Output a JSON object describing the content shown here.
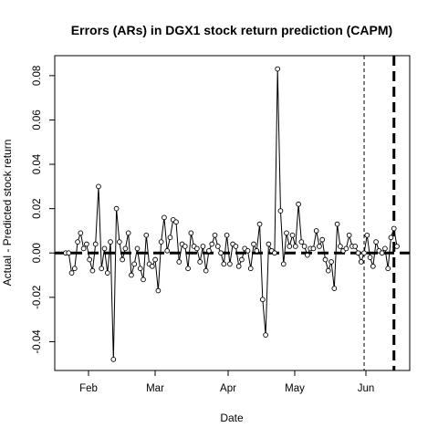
{
  "chart_data": {
    "type": "line",
    "title": "Errors (ARs) in DGX1 stock return prediction (CAPM)",
    "xlabel": "Date",
    "ylabel": "Actual - Predicted stock return",
    "x_ticks": [
      "Feb",
      "Mar",
      "Apr",
      "May",
      "Jun"
    ],
    "y_ticks": [
      "-0.04",
      "-0.02",
      "0.00",
      "0.02",
      "0.04",
      "0.06",
      "0.08"
    ],
    "ylim": [
      -0.053,
      0.089
    ],
    "reference_line_y": 0.0,
    "vertical_lines": [
      {
        "x": 100,
        "style": "dashed-thin"
      },
      {
        "x": 110,
        "style": "dashed-thick"
      }
    ],
    "series": [
      {
        "values": [
          0.0,
          0.0,
          -0.009,
          -0.007,
          0.005,
          0.009,
          0.002,
          0.004,
          -0.003,
          -0.008,
          0.004,
          0.03,
          -0.007,
          0.002,
          -0.009,
          0.005,
          -0.048,
          0.02,
          0.005,
          -0.003,
          0.002,
          0.009,
          -0.01,
          -0.005,
          0.002,
          -0.007,
          -0.012,
          0.008,
          -0.005,
          -0.006,
          -0.003,
          -0.017,
          0.005,
          0.016,
          0.001,
          0.007,
          0.015,
          0.014,
          -0.004,
          0.004,
          0.003,
          -0.007,
          0.009,
          0.003,
          0.002,
          -0.004,
          0.003,
          -0.008,
          0.001,
          0.004,
          0.008,
          0.003,
          0.0,
          -0.005,
          0.008,
          -0.005,
          0.004,
          0.003,
          -0.006,
          -0.003,
          0.002,
          0.001,
          -0.007,
          0.004,
          0.001,
          0.013,
          -0.021,
          -0.037,
          0.004,
          0.001,
          0.0,
          0.083,
          0.019,
          -0.005,
          0.009,
          0.003,
          0.008,
          0.003,
          0.022,
          0.005,
          0.003,
          -0.001,
          0.002,
          0.002,
          0.01,
          0.003,
          0.006,
          -0.003,
          -0.008,
          -0.004,
          -0.016,
          0.013,
          0.003,
          0.001,
          0.002,
          0.008,
          0.003,
          0.003,
          0.0,
          -0.004,
          0.0,
          0.008,
          -0.002,
          -0.006,
          0.005,
          0.001,
          0.0,
          0.002,
          -0.007,
          0.007,
          0.011,
          0.003
        ]
      }
    ]
  }
}
